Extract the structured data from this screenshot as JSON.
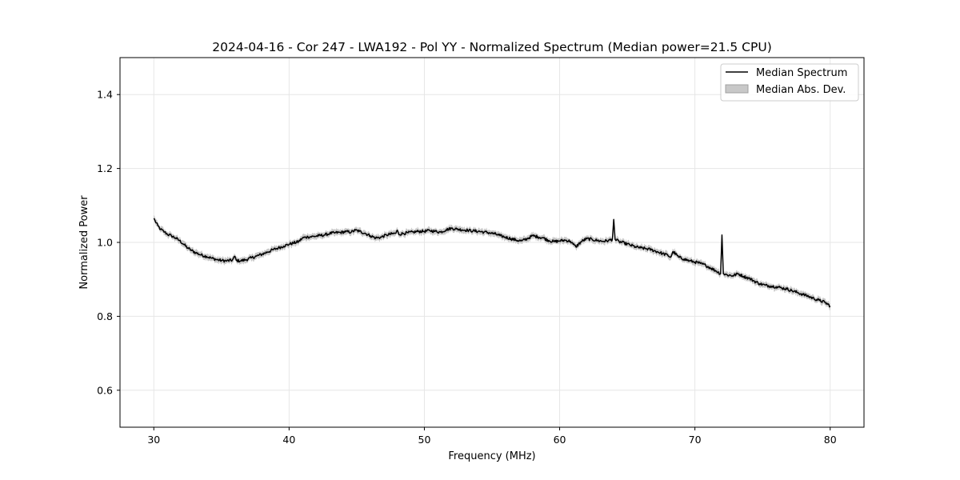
{
  "chart_data": {
    "type": "line",
    "title": "2024-04-16 - Cor 247 - LWA192 - Pol YY - Normalized Spectrum (Median power=21.5 CPU)",
    "xlabel": "Frequency (MHz)",
    "ylabel": "Normalized Power",
    "xlim": [
      27.5,
      82.5
    ],
    "ylim": [
      0.5,
      1.5
    ],
    "xticks": [
      30,
      40,
      50,
      60,
      70,
      80
    ],
    "yticks": [
      0.6,
      0.8,
      1.0,
      1.2,
      1.4
    ],
    "xtick_labels": [
      "30",
      "40",
      "50",
      "60",
      "70",
      "80"
    ],
    "ytick_labels": [
      "0.6",
      "0.8",
      "1.0",
      "1.2",
      "1.4"
    ],
    "grid": true,
    "legend_position": "top-right",
    "series": [
      {
        "name": "Median Spectrum",
        "kind": "line",
        "color": "#000000",
        "x": [
          30.0,
          30.1,
          30.3,
          30.5,
          30.8,
          31.0,
          31.3,
          31.6,
          31.9,
          32.2,
          32.5,
          32.8,
          33.1,
          33.5,
          33.9,
          34.3,
          34.7,
          35.0,
          35.4,
          35.8,
          36.0,
          36.1,
          36.4,
          36.8,
          37.2,
          37.6,
          38.0,
          38.4,
          38.8,
          39.2,
          39.6,
          40.0,
          40.3,
          40.7,
          41.0,
          41.4,
          41.8,
          42.2,
          42.6,
          43.0,
          43.4,
          43.8,
          44.2,
          44.6,
          44.9,
          45.2,
          45.6,
          46.0,
          46.4,
          46.8,
          47.2,
          47.6,
          47.9,
          48.0,
          48.1,
          48.4,
          48.8,
          49.2,
          49.6,
          50.0,
          50.4,
          50.8,
          51.2,
          51.6,
          52.0,
          52.4,
          52.8,
          53.2,
          53.6,
          54.0,
          54.4,
          54.8,
          55.2,
          55.6,
          56.0,
          56.4,
          56.8,
          57.2,
          57.6,
          58.0,
          58.4,
          58.8,
          59.2,
          59.6,
          60.0,
          60.4,
          60.8,
          61.0,
          61.2,
          61.6,
          62.0,
          62.4,
          62.8,
          63.2,
          63.6,
          63.9,
          64.0,
          64.1,
          64.4,
          64.8,
          65.2,
          65.6,
          66.0,
          66.4,
          66.8,
          67.2,
          67.6,
          68.0,
          68.2,
          68.4,
          68.8,
          69.2,
          69.6,
          70.0,
          70.4,
          70.8,
          71.2,
          71.6,
          71.9,
          72.0,
          72.1,
          72.4,
          72.8,
          73.2,
          73.6,
          74.0,
          74.4,
          74.8,
          75.2,
          75.6,
          76.0,
          76.4,
          76.8,
          77.2,
          77.6,
          78.0,
          78.4,
          78.8,
          79.2,
          79.6,
          80.0
        ],
        "y": [
          1.065,
          1.058,
          1.045,
          1.035,
          1.028,
          1.022,
          1.018,
          1.012,
          1.005,
          0.995,
          0.985,
          0.978,
          0.972,
          0.966,
          0.962,
          0.957,
          0.953,
          0.951,
          0.95,
          0.952,
          0.962,
          0.951,
          0.95,
          0.953,
          0.958,
          0.963,
          0.968,
          0.974,
          0.98,
          0.985,
          0.99,
          0.995,
          0.998,
          1.002,
          1.012,
          1.015,
          1.016,
          1.018,
          1.02,
          1.024,
          1.026,
          1.027,
          1.029,
          1.028,
          1.033,
          1.03,
          1.025,
          1.018,
          1.012,
          1.014,
          1.02,
          1.023,
          1.025,
          1.033,
          1.022,
          1.024,
          1.026,
          1.028,
          1.03,
          1.03,
          1.032,
          1.03,
          1.028,
          1.034,
          1.038,
          1.036,
          1.034,
          1.033,
          1.031,
          1.03,
          1.028,
          1.026,
          1.023,
          1.018,
          1.014,
          1.01,
          1.006,
          1.004,
          1.01,
          1.018,
          1.015,
          1.012,
          1.005,
          1.002,
          1.004,
          1.006,
          1.003,
          0.995,
          0.988,
          1.002,
          1.01,
          1.008,
          1.005,
          1.003,
          1.005,
          1.008,
          1.062,
          1.008,
          1.002,
          0.998,
          0.993,
          0.988,
          0.985,
          0.983,
          0.98,
          0.975,
          0.97,
          0.965,
          0.96,
          0.975,
          0.96,
          0.955,
          0.95,
          0.947,
          0.943,
          0.938,
          0.93,
          0.922,
          0.915,
          1.02,
          0.915,
          0.912,
          0.91,
          0.915,
          0.908,
          0.903,
          0.895,
          0.888,
          0.884,
          0.882,
          0.88,
          0.877,
          0.874,
          0.869,
          0.864,
          0.859,
          0.854,
          0.848,
          0.843,
          0.838,
          0.828
        ]
      },
      {
        "name": "Median Abs. Dev.",
        "kind": "band",
        "color": "#c8c8c8",
        "halfwidth": 0.008
      }
    ]
  }
}
